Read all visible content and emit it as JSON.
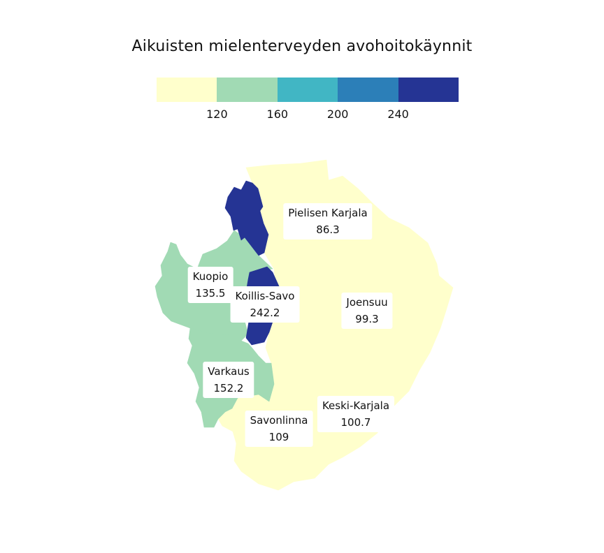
{
  "title": "Aikuisten mielenterveyden avohoitokäynnit",
  "legend": {
    "colors": [
      "#ffffcc",
      "#a1dab4",
      "#41b6c4",
      "#2c7fb8",
      "#253494"
    ],
    "ticks": [
      "120",
      "160",
      "200",
      "240"
    ]
  },
  "regions": [
    {
      "name": "Pielisen Karjala",
      "value": "86.3",
      "color": "#ffffcc"
    },
    {
      "name": "Joensuu",
      "value": "99.3",
      "color": "#ffffcc"
    },
    {
      "name": "Keski-Karjala",
      "value": "100.7",
      "color": "#ffffcc"
    },
    {
      "name": "Savonlinna",
      "value": "109",
      "color": "#ffffcc"
    },
    {
      "name": "Kuopio",
      "value": "135.5",
      "color": "#a1dab4"
    },
    {
      "name": "Varkaus",
      "value": "152.2",
      "color": "#a1dab4"
    },
    {
      "name": "Koillis-Savo",
      "value": "242.2",
      "color": "#253494"
    }
  ]
}
